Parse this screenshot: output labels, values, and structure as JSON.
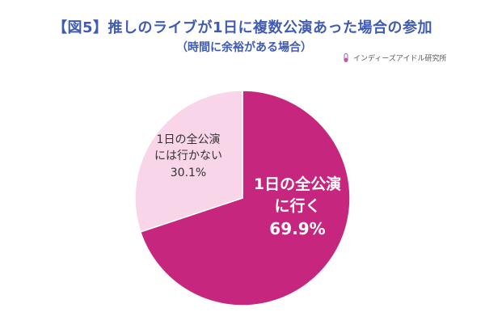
{
  "header": {
    "title": "【図5】推しのライブが1日に複数公演あった場合の参加",
    "subtitle": "（時間に余裕がある場合）"
  },
  "brand": {
    "name": "インディーズアイドル研究所",
    "icon": "test-tube-icon"
  },
  "chart_data": {
    "type": "pie",
    "slices": [
      {
        "label_lines": [
          "1日の全公演",
          "に行く"
        ],
        "value_label": "69.9%",
        "value": 69.9,
        "color": "#c6267d"
      },
      {
        "label_lines": [
          "1日の全公演",
          "には行かない"
        ],
        "value_label": "30.1%",
        "value": 30.1,
        "color": "#f8d5e8"
      }
    ],
    "start_angle": "12 o'clock",
    "direction": "clockwise",
    "legend": "none"
  }
}
